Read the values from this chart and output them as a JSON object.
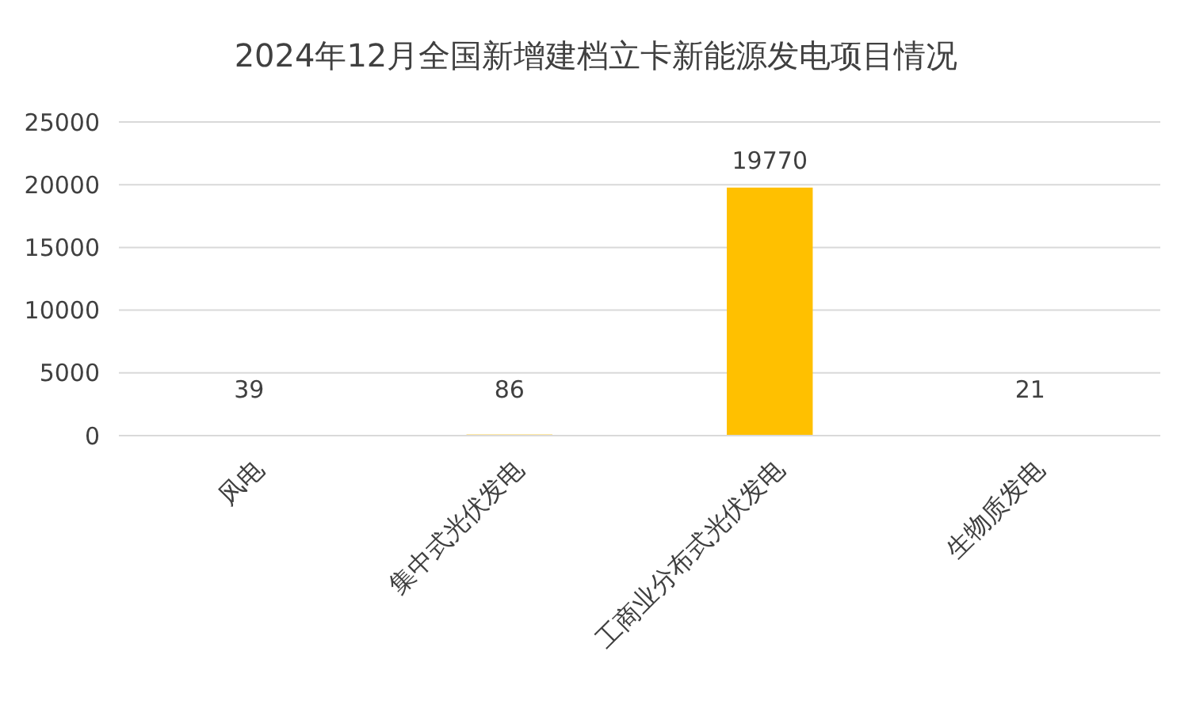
{
  "chart_data": {
    "type": "bar",
    "title": "2024年12月全国新增建档立卡新能源发电项目情况",
    "categories": [
      "风电",
      "集中式光伏发电",
      "工商业分布式光伏发电",
      "生物质发电"
    ],
    "values": [
      39,
      86,
      19770,
      21
    ],
    "color": "#ffc000",
    "ylim": [
      0,
      25000
    ],
    "yticks": [
      0,
      5000,
      10000,
      15000,
      20000,
      25000
    ],
    "grid": "y",
    "data_labels": true
  }
}
